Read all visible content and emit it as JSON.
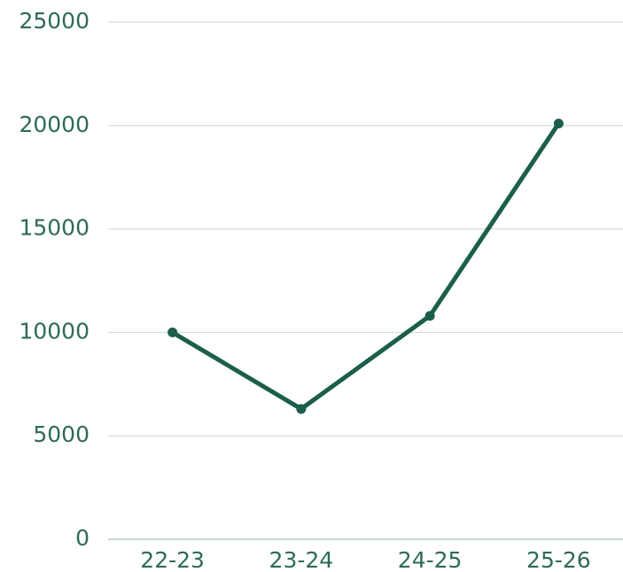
{
  "chart_data": {
    "type": "line",
    "categories": [
      "22-23",
      "23-24",
      "24-25",
      "25-26"
    ],
    "series": [
      {
        "color": "#1b5e4b",
        "values": [
          10000,
          6300,
          10800,
          20100
        ]
      }
    ],
    "ylim": [
      0,
      25000
    ],
    "yticks": [
      0,
      5000,
      10000,
      15000,
      20000,
      25000
    ],
    "grid": true
  }
}
